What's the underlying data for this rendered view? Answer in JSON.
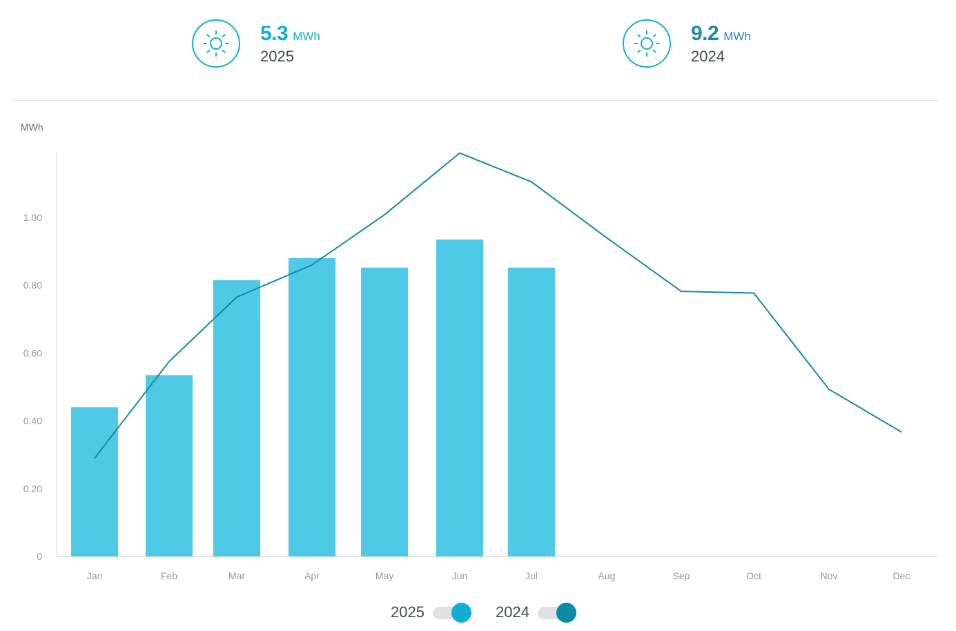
{
  "summary": [
    {
      "value": "5.3",
      "unit": "MWh",
      "year": "2025",
      "icon": "sun-icon"
    },
    {
      "value": "9.2",
      "unit": "MWh",
      "year": "2024",
      "icon": "sun-icon"
    }
  ],
  "legend": [
    {
      "label": "2025",
      "enabled": true
    },
    {
      "label": "2024",
      "enabled": true
    }
  ],
  "colors": {
    "bar_2025": "#4ec9e6",
    "line_2024": "#1389a6",
    "accent_2025": "#12aed3",
    "accent_2024": "#1d8aa8"
  },
  "chart_data": {
    "type": "bar",
    "ylabel": "MWh",
    "ylim": [
      0,
      1.2
    ],
    "yticks": [
      "0",
      "0.20",
      "0.40",
      "0.60",
      "0.80",
      "1.00"
    ],
    "ytick_values": [
      0,
      0.2,
      0.4,
      0.6,
      0.8,
      1.0
    ],
    "categories": [
      "Jan",
      "Feb",
      "Mar",
      "Apr",
      "May",
      "Jun",
      "Jul",
      "Aug",
      "Sep",
      "Oct",
      "Nov",
      "Dec"
    ],
    "series": [
      {
        "name": "2025",
        "type": "bar",
        "values": [
          0.44,
          0.535,
          0.815,
          0.88,
          0.852,
          0.935,
          0.852,
          null,
          null,
          null,
          null,
          null
        ]
      },
      {
        "name": "2024",
        "type": "line",
        "values": [
          0.29,
          0.575,
          0.765,
          0.86,
          1.008,
          1.19,
          1.105,
          0.94,
          0.782,
          0.777,
          0.493,
          0.367
        ]
      }
    ]
  }
}
